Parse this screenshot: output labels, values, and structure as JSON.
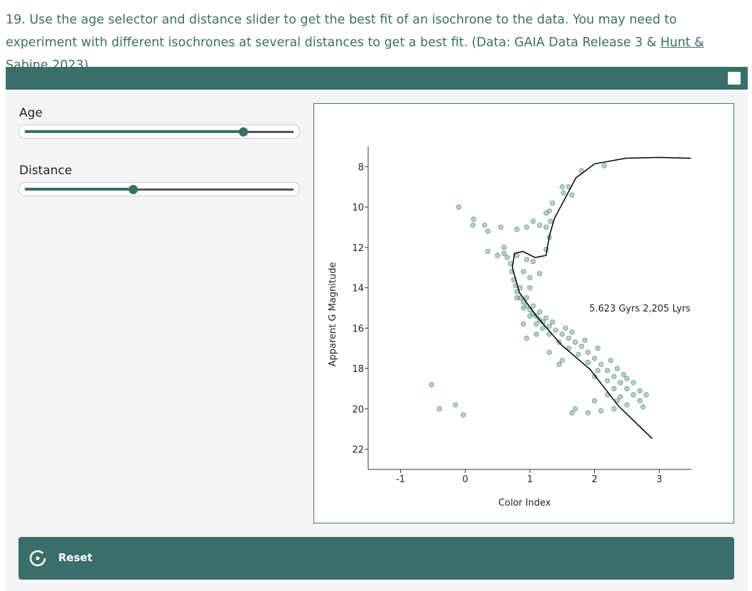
{
  "question": {
    "text": "19. Use the age selector and distance slider to get the best fit of an isochrone to the data. You may need to experiment with different isochrones at several distances to get a best fit. (Data: GAIA Data Release 3 & ",
    "link": "Hunt & Sabine 2023",
    "closing": ")"
  },
  "controls": {
    "age_label": "Age",
    "distance_label": "Distance",
    "reset": "Reset"
  },
  "chart_data": {
    "type": "scatter",
    "x_label": "Color Index",
    "y_label": "Apparent G Magnitude",
    "annotation": "5.623 Gyrs 2,205 Lyrs",
    "xlim": [
      -1.5,
      3.5
    ],
    "ylim": [
      7,
      23
    ],
    "y_inverted": true,
    "xticks": [
      -1,
      0,
      1,
      2,
      3
    ],
    "yticks": [
      8,
      10,
      12,
      14,
      16,
      18,
      20,
      22
    ],
    "points": {
      "color": "#3a7a72",
      "x": [
        0.65,
        0.7,
        0.72,
        0.75,
        0.78,
        0.8,
        0.85,
        0.9,
        0.95,
        1.0,
        1.05,
        1.1,
        1.15,
        1.2,
        1.3,
        1.4,
        1.5,
        1.6,
        1.7,
        1.8,
        1.9,
        2.0,
        2.1,
        2.2,
        2.3,
        2.4,
        2.5,
        2.6,
        2.7,
        2.75,
        0.8,
        0.9,
        1.0,
        1.1,
        1.2,
        1.3,
        1.45,
        1.6,
        1.75,
        1.9,
        2.05,
        2.2,
        2.3,
        2.4,
        2.5,
        2.3,
        2.1,
        1.9,
        1.7,
        1.65,
        2.0,
        2.2,
        0.85,
        0.95,
        1.05,
        1.15,
        1.25,
        1.35,
        1.55,
        1.65,
        1.85,
        2.05,
        2.25,
        2.35,
        2.45,
        2.6,
        2.7,
        2.8,
        2.5,
        2.35,
        2.0,
        1.5,
        1.45,
        1.3,
        1.1,
        0.9,
        0.95,
        0.6,
        0.8,
        0.95,
        1.05,
        0.5,
        0.35,
        0.6,
        0.9,
        1.0,
        1.15,
        1.0,
        1.25,
        1.3,
        1.25,
        1.32,
        1.25,
        1.3,
        1.35,
        1.5,
        1.52,
        1.6,
        1.65,
        1.8,
        2.15,
        1.15,
        1.05,
        -0.1,
        -0.52,
        -0.4,
        -0.15,
        -0.03,
        0.13,
        0.12,
        0.3,
        0.55,
        0.8,
        0.35,
        0.95
      ],
      "y": [
        12.5,
        12.8,
        13.2,
        13.6,
        13.9,
        14.2,
        14.5,
        14.7,
        14.9,
        15.1,
        15.3,
        15.4,
        15.6,
        15.7,
        15.9,
        16.1,
        16.3,
        16.5,
        16.7,
        16.9,
        17.2,
        17.5,
        17.8,
        18.1,
        18.4,
        18.7,
        19.0,
        19.3,
        19.6,
        19.9,
        14.5,
        15.0,
        15.4,
        15.8,
        16.0,
        16.3,
        16.7,
        17.0,
        17.3,
        17.7,
        18.1,
        18.6,
        19.0,
        19.4,
        19.8,
        20.0,
        20.1,
        20.2,
        20.0,
        20.2,
        19.6,
        19.3,
        14.0,
        14.5,
        14.9,
        15.2,
        15.5,
        15.7,
        16.0,
        16.2,
        16.6,
        17.0,
        17.6,
        18.0,
        18.3,
        18.7,
        19.1,
        19.3,
        18.5,
        19.6,
        18.4,
        17.6,
        17.8,
        17.2,
        16.3,
        15.8,
        16.5,
        12.3,
        12.4,
        12.6,
        12.7,
        12.4,
        12.2,
        12.0,
        13.2,
        13.5,
        13.3,
        14.0,
        12.1,
        11.5,
        11.0,
        10.7,
        10.3,
        10.2,
        9.8,
        9.0,
        9.3,
        9.0,
        9.4,
        8.2,
        7.95,
        10.9,
        10.7,
        10.0,
        18.8,
        20.0,
        19.8,
        20.3,
        10.6,
        10.9,
        10.9,
        11.0,
        11.1,
        11.2,
        11.0
      ]
    },
    "isochrone": {
      "color": "#000000",
      "x": [
        2.89,
        2.37,
        1.93,
        1.49,
        1.11,
        0.84,
        0.73,
        0.76,
        0.89,
        1.08,
        1.25,
        1.3,
        1.38,
        1.54,
        1.71,
        2.0,
        2.48,
        3.0,
        3.49
      ],
      "y": [
        21.47,
        19.86,
        18.04,
        16.84,
        15.44,
        14.25,
        13.02,
        12.3,
        12.2,
        12.5,
        12.4,
        11.44,
        10.56,
        9.6,
        8.56,
        7.86,
        7.58,
        7.54,
        7.58
      ]
    }
  }
}
